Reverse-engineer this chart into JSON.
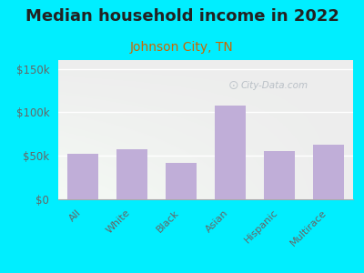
{
  "title": "Median household income in 2022",
  "subtitle": "Johnson City, TN",
  "categories": [
    "All",
    "White",
    "Black",
    "Asian",
    "Hispanic",
    "Multirace"
  ],
  "values": [
    52000,
    58000,
    42000,
    108000,
    55000,
    63000
  ],
  "bar_color": "#c0aed8",
  "background_color": "#00eeff",
  "title_fontsize": 13,
  "subtitle_fontsize": 10,
  "subtitle_color": "#cc6600",
  "tick_color": "#666666",
  "ylim": [
    0,
    160000
  ],
  "yticks": [
    0,
    50000,
    100000,
    150000
  ],
  "watermark": "City-Data.com"
}
